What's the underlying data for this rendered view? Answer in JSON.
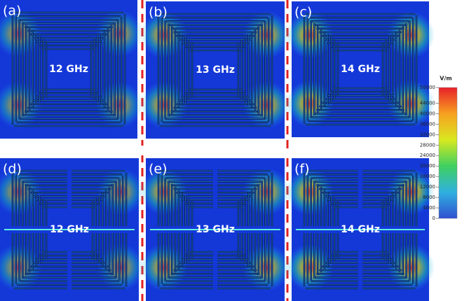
{
  "panels": [
    {
      "label": "(a)",
      "frequency": "12 GHz"
    },
    {
      "label": "(b)",
      "frequency": "13 GHz"
    },
    {
      "label": "(c)",
      "frequency": "14 GHz"
    },
    {
      "label": "(d)",
      "frequency": "12 GHz"
    },
    {
      "label": "(e)",
      "frequency": "13 GHz"
    },
    {
      "label": "(f)",
      "frequency": "14 GHz"
    }
  ],
  "colorbar": {
    "unit": "V/m",
    "ticks": [
      50000,
      44000,
      40000,
      36000,
      32000,
      28000,
      24000,
      20000,
      16000,
      12000,
      8000,
      4000,
      0
    ]
  }
}
